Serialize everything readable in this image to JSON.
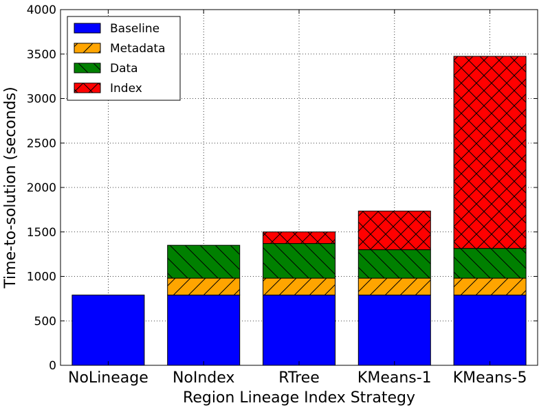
{
  "chart_data": {
    "type": "bar",
    "stacked": true,
    "categories": [
      "NoLineage",
      "NoIndex",
      "RTree",
      "KMeans-1",
      "KMeans-5"
    ],
    "series": [
      {
        "name": "Baseline",
        "color": "#0000ff",
        "hatch": "none",
        "values": [
          790,
          790,
          790,
          790,
          790
        ]
      },
      {
        "name": "Metadata",
        "color": "#ffa500",
        "hatch": "forward",
        "values": [
          0,
          190,
          190,
          190,
          190
        ]
      },
      {
        "name": "Data",
        "color": "#008000",
        "hatch": "back",
        "values": [
          0,
          370,
          390,
          320,
          335
        ]
      },
      {
        "name": "Index",
        "color": "#ff0000",
        "hatch": "cross",
        "values": [
          0,
          0,
          130,
          435,
          2160
        ]
      }
    ],
    "xlabel": "Region Lineage Index Strategy",
    "ylabel": "Time-to-solution (seconds)",
    "ylim": [
      0,
      4000
    ],
    "yticks": [
      0,
      500,
      1000,
      1500,
      2000,
      2500,
      3000,
      3500,
      4000
    ],
    "grid": true,
    "legend_position": "top-left"
  }
}
